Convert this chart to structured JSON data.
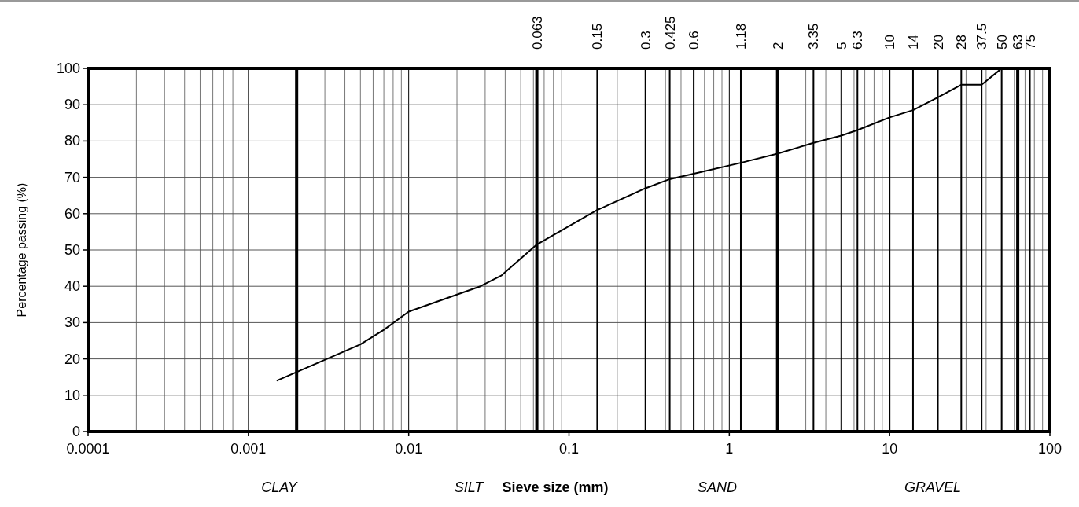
{
  "chart_data": {
    "type": "line",
    "xlabel": "Sieve size (mm)",
    "ylabel": "Percentage passing (%)",
    "log": "x",
    "x": [
      0.0015,
      0.005,
      0.007,
      0.01,
      0.028,
      0.038,
      0.063,
      0.15,
      0.3,
      0.425,
      0.6,
      1.18,
      2,
      3.35,
      5,
      6.3,
      10,
      14,
      20,
      28,
      37.5,
      50
    ],
    "series": [
      {
        "color": "#000000",
        "values": [
          14,
          24,
          28,
          33,
          40,
          43,
          51.5,
          61,
          67,
          69.5,
          71,
          74,
          76.5,
          79.5,
          81.5,
          83,
          86.5,
          88.5,
          92,
          95.5,
          95.5,
          100
        ]
      }
    ],
    "xlim": [
      0.0001,
      100
    ],
    "xticks": [
      0.0001,
      0.001,
      0.01,
      0.1,
      1,
      10,
      100
    ],
    "ylim": [
      0,
      100
    ],
    "yticks": [
      0,
      10,
      20,
      30,
      40,
      50,
      60,
      70,
      80,
      90,
      100
    ],
    "grid": true,
    "marker": "none",
    "line_style": "solid",
    "ref_lines": [
      {
        "axis": "x",
        "value": 0.002,
        "color": "#000000"
      },
      {
        "axis": "x",
        "value": 0.063,
        "label": "0.063",
        "color": "#000000"
      },
      {
        "axis": "x",
        "value": 0.15,
        "label": "0.15"
      },
      {
        "axis": "x",
        "value": 0.3,
        "label": "0.3"
      },
      {
        "axis": "x",
        "value": 0.425,
        "label": "0.425"
      },
      {
        "axis": "x",
        "value": 0.6,
        "label": "0.6"
      },
      {
        "axis": "x",
        "value": 1.18,
        "label": "1.18"
      },
      {
        "axis": "x",
        "value": 2,
        "label": "2",
        "color": "#000000"
      },
      {
        "axis": "x",
        "value": 3.35,
        "label": "3.35"
      },
      {
        "axis": "x",
        "value": 5,
        "label": "5"
      },
      {
        "axis": "x",
        "value": 6.3,
        "label": "6.3"
      },
      {
        "axis": "x",
        "value": 10,
        "label": "10"
      },
      {
        "axis": "x",
        "value": 14,
        "label": "14"
      },
      {
        "axis": "x",
        "value": 20,
        "label": "20"
      },
      {
        "axis": "x",
        "value": 28,
        "label": "28"
      },
      {
        "axis": "x",
        "value": 37.5,
        "label": "37.5"
      },
      {
        "axis": "x",
        "value": 50,
        "label": "50"
      },
      {
        "axis": "x",
        "value": 63,
        "label": "63",
        "color": "#000000"
      },
      {
        "axis": "x",
        "value": 75,
        "label": "75"
      }
    ],
    "annotations": [
      "CLAY",
      "SILT",
      "SAND",
      "GRAVEL"
    ]
  }
}
